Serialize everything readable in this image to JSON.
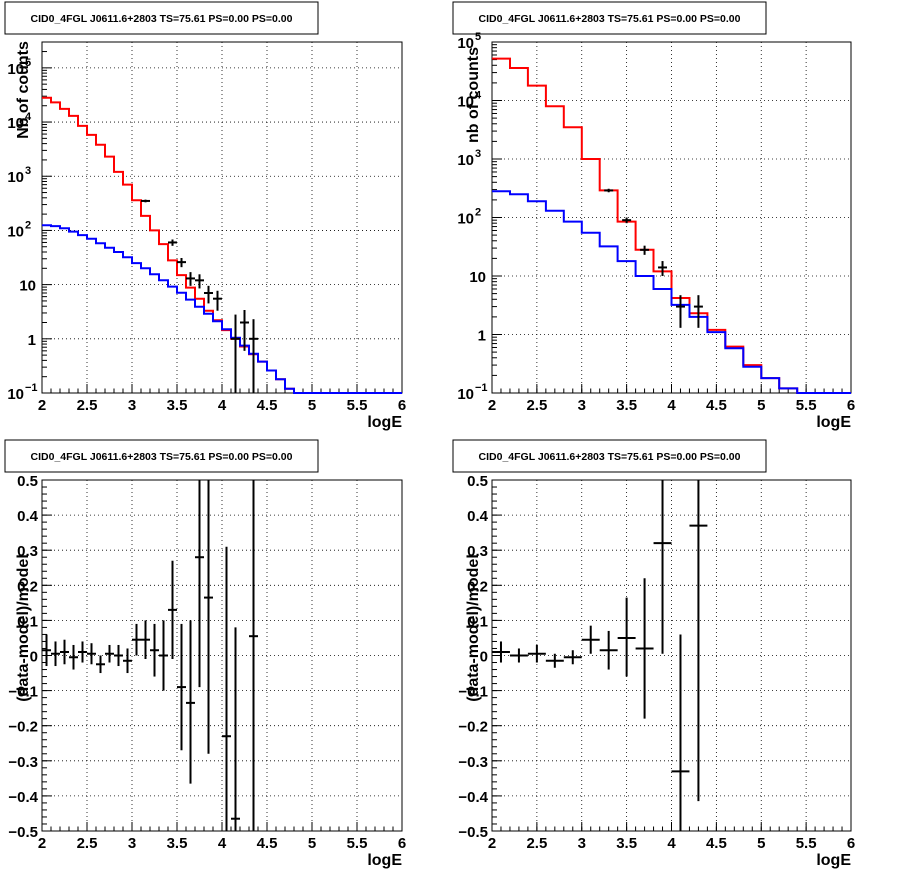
{
  "chart_data": [
    {
      "panel": "top-left",
      "type": "step-histogram",
      "title": "CID0_4FGL J0611.6+2803 TS=75.61 PS=0.00 PS=0.00",
      "xlabel": "logE",
      "ylabel": "Nb of counts",
      "xlim": [
        2,
        6
      ],
      "ylim": [
        0.1,
        300000
      ],
      "yscale": "log",
      "grid": true,
      "xticks": [
        "2",
        "2.5",
        "3",
        "3.5",
        "4",
        "4.5",
        "5",
        "5.5",
        "6"
      ],
      "yticks": [
        {
          "value": 0.1,
          "base": "10",
          "exp": "−1"
        },
        {
          "value": 1,
          "base": "1",
          "exp": ""
        },
        {
          "value": 10,
          "base": "10",
          "exp": ""
        },
        {
          "value": 100,
          "base": "10",
          "exp": "2"
        },
        {
          "value": 1000,
          "base": "10",
          "exp": "3"
        },
        {
          "value": 10000,
          "base": "10",
          "exp": "4"
        },
        {
          "value": 100000,
          "base": "10",
          "exp": "5"
        }
      ],
      "bin_edges": [
        2.0,
        2.1,
        2.2,
        2.3,
        2.4,
        2.5,
        2.6,
        2.7,
        2.8,
        2.9,
        3.0,
        3.1,
        3.2,
        3.3,
        3.4,
        3.5,
        3.6,
        3.7,
        3.8,
        3.9,
        4.0,
        4.1,
        4.2,
        4.3,
        4.4,
        4.5,
        4.6,
        4.7,
        4.8,
        4.9,
        5.0,
        5.1,
        5.2,
        5.3,
        5.4,
        5.5,
        5.6,
        5.7,
        5.8,
        5.9,
        6.0
      ],
      "series": [
        {
          "color": "#ff0000",
          "values": [
            28000,
            23000,
            17500,
            13000,
            8500,
            5800,
            3800,
            2300,
            1200,
            700,
            360,
            185,
            100,
            56,
            28,
            15,
            8.8,
            5.5,
            3.3,
            2.2,
            1.45,
            1.0,
            0.72,
            0.52,
            0.38,
            0.26,
            0.18,
            0.12,
            0.1,
            0.1,
            0.1,
            0.1,
            0.1,
            0.1,
            0.1,
            0.1,
            0.1,
            0.1,
            0.1,
            0.1
          ]
        },
        {
          "color": "#0000ff",
          "values": [
            125,
            120,
            110,
            95,
            82,
            70,
            58,
            48,
            40,
            32,
            25,
            20,
            15.5,
            12,
            9.2,
            7.1,
            5.3,
            3.9,
            2.9,
            2.1,
            1.5,
            1.05,
            0.75,
            0.53,
            0.38,
            0.26,
            0.18,
            0.12,
            0.1,
            0.1,
            0.1,
            0.1,
            0.1,
            0.1,
            0.1,
            0.1,
            0.1,
            0.1,
            0.1,
            0.1
          ]
        }
      ],
      "data_points": [
        {
          "x": 3.15,
          "y": 350,
          "ylo": 330,
          "yhi": 370
        },
        {
          "x": 3.45,
          "y": 60,
          "ylo": 52,
          "yhi": 68
        },
        {
          "x": 3.55,
          "y": 26,
          "ylo": 21,
          "yhi": 31
        },
        {
          "x": 3.65,
          "y": 13,
          "ylo": 9.5,
          "yhi": 17
        },
        {
          "x": 3.75,
          "y": 12,
          "ylo": 8.5,
          "yhi": 15.5
        },
        {
          "x": 3.85,
          "y": 7,
          "ylo": 4.5,
          "yhi": 9.5
        },
        {
          "x": 3.95,
          "y": 5.5,
          "ylo": 3.3,
          "yhi": 7.7
        },
        {
          "x": 4.15,
          "y": 1,
          "ylo": 0.1,
          "yhi": 2.8
        },
        {
          "x": 4.25,
          "y": 2,
          "ylo": 0.6,
          "yhi": 3.4
        },
        {
          "x": 4.35,
          "y": 1,
          "ylo": 0.1,
          "yhi": 2.3
        }
      ]
    },
    {
      "panel": "top-right",
      "type": "step-histogram",
      "title": "CID0_4FGL J0611.6+2803 TS=75.61 PS=0.00 PS=0.00",
      "xlabel": "logE",
      "ylabel": "nb of counts",
      "xlim": [
        2,
        6
      ],
      "ylim": [
        0.1,
        100000
      ],
      "yscale": "log",
      "grid": true,
      "xticks": [
        "2",
        "2.5",
        "3",
        "3.5",
        "4",
        "4.5",
        "5",
        "5.5",
        "6"
      ],
      "yticks": [
        {
          "value": 0.1,
          "base": "10",
          "exp": "−1"
        },
        {
          "value": 1,
          "base": "1",
          "exp": ""
        },
        {
          "value": 10,
          "base": "10",
          "exp": ""
        },
        {
          "value": 100,
          "base": "10",
          "exp": "2"
        },
        {
          "value": 1000,
          "base": "10",
          "exp": "3"
        },
        {
          "value": 10000,
          "base": "10",
          "exp": "4"
        },
        {
          "value": 100000,
          "base": "10",
          "exp": "5"
        }
      ],
      "bin_edges": [
        2.0,
        2.2,
        2.4,
        2.6,
        2.8,
        3.0,
        3.2,
        3.4,
        3.6,
        3.8,
        4.0,
        4.2,
        4.4,
        4.6,
        4.8,
        5.0,
        5.2,
        5.4,
        5.6,
        5.8,
        6.0
      ],
      "series": [
        {
          "color": "#ff0000",
          "values": [
            52000,
            36000,
            18000,
            8000,
            3500,
            1000,
            290,
            85,
            28,
            12,
            4.2,
            2.3,
            1.2,
            0.62,
            0.3,
            0.18,
            0.12,
            0.1,
            0.1,
            0.1
          ]
        },
        {
          "color": "#0000ff",
          "values": [
            280,
            250,
            190,
            130,
            85,
            55,
            32,
            18,
            10,
            6,
            3.2,
            2,
            1.1,
            0.58,
            0.28,
            0.18,
            0.12,
            0.1,
            0.1,
            0.1
          ]
        }
      ],
      "data_points": [
        {
          "x": 3.3,
          "y": 290,
          "ylo": 270,
          "yhi": 310
        },
        {
          "x": 3.5,
          "y": 90,
          "ylo": 80,
          "yhi": 100
        },
        {
          "x": 3.7,
          "y": 28,
          "ylo": 23,
          "yhi": 33
        },
        {
          "x": 3.9,
          "y": 14,
          "ylo": 10,
          "yhi": 18
        },
        {
          "x": 4.1,
          "y": 3,
          "ylo": 1.3,
          "yhi": 4.7
        },
        {
          "x": 4.3,
          "y": 3,
          "ylo": 1.3,
          "yhi": 4.7
        }
      ]
    },
    {
      "panel": "bottom-left",
      "type": "scatter-errorbars",
      "title": "CID0_4FGL J0611.6+2803 TS=75.61 PS=0.00 PS=0.00",
      "xlabel": "logE",
      "ylabel": "(data-model)/model",
      "xlim": [
        2,
        6
      ],
      "ylim": [
        -0.5,
        0.5
      ],
      "yscale": "linear",
      "grid": true,
      "xticks": [
        "2",
        "2.5",
        "3",
        "3.5",
        "4",
        "4.5",
        "5",
        "5.5",
        "6"
      ],
      "yticks": [
        "−0.5",
        "−0.4",
        "−0.3",
        "−0.2",
        "−0.1",
        "0",
        "0.1",
        "0.2",
        "0.3",
        "0.4",
        "0.5"
      ],
      "xerr": 0.05,
      "data_points": [
        {
          "x": 2.05,
          "y": 0.015,
          "ylo": -0.03,
          "yhi": 0.06
        },
        {
          "x": 2.15,
          "y": 0.005,
          "ylo": -0.03,
          "yhi": 0.04
        },
        {
          "x": 2.25,
          "y": 0.01,
          "ylo": -0.025,
          "yhi": 0.045
        },
        {
          "x": 2.35,
          "y": -0.005,
          "ylo": -0.04,
          "yhi": 0.03
        },
        {
          "x": 2.45,
          "y": 0.01,
          "ylo": -0.02,
          "yhi": 0.04
        },
        {
          "x": 2.55,
          "y": 0.005,
          "ylo": -0.025,
          "yhi": 0.035
        },
        {
          "x": 2.65,
          "y": -0.025,
          "ylo": -0.05,
          "yhi": 0.0
        },
        {
          "x": 2.75,
          "y": 0.005,
          "ylo": -0.02,
          "yhi": 0.03
        },
        {
          "x": 2.85,
          "y": 0.0,
          "ylo": -0.03,
          "yhi": 0.03
        },
        {
          "x": 2.95,
          "y": -0.015,
          "ylo": -0.05,
          "yhi": 0.02
        },
        {
          "x": 3.05,
          "y": 0.045,
          "ylo": 0.0,
          "yhi": 0.09
        },
        {
          "x": 3.15,
          "y": 0.045,
          "ylo": -0.01,
          "yhi": 0.1
        },
        {
          "x": 3.25,
          "y": 0.015,
          "ylo": -0.06,
          "yhi": 0.09
        },
        {
          "x": 3.35,
          "y": 0.0,
          "ylo": -0.1,
          "yhi": 0.1
        },
        {
          "x": 3.45,
          "y": 0.13,
          "ylo": -0.01,
          "yhi": 0.27
        },
        {
          "x": 3.55,
          "y": -0.09,
          "ylo": -0.27,
          "yhi": 0.09
        },
        {
          "x": 3.65,
          "y": -0.135,
          "ylo": -0.365,
          "yhi": 0.1
        },
        {
          "x": 3.75,
          "y": 0.28,
          "ylo": -0.09,
          "yhi": 0.5
        },
        {
          "x": 3.85,
          "y": 0.165,
          "ylo": -0.28,
          "yhi": 0.5
        },
        {
          "x": 4.05,
          "y": -0.23,
          "ylo": -0.5,
          "yhi": 0.31
        },
        {
          "x": 4.15,
          "y": -0.465,
          "ylo": -0.5,
          "yhi": 0.08
        },
        {
          "x": 4.35,
          "y": 0.055,
          "ylo": -0.5,
          "yhi": 0.5
        }
      ]
    },
    {
      "panel": "bottom-right",
      "type": "scatter-errorbars",
      "title": "CID0_4FGL J0611.6+2803 TS=75.61 PS=0.00 PS=0.00",
      "xlabel": "logE",
      "ylabel": "(data-model)/model",
      "xlim": [
        2,
        6
      ],
      "ylim": [
        -0.5,
        0.5
      ],
      "yscale": "linear",
      "grid": true,
      "xticks": [
        "2",
        "2.5",
        "3",
        "3.5",
        "4",
        "4.5",
        "5",
        "5.5",
        "6"
      ],
      "yticks": [
        "−0.5",
        "−0.4",
        "−0.3",
        "−0.2",
        "−0.1",
        "0",
        "0.1",
        "0.2",
        "0.3",
        "0.4",
        "0.5"
      ],
      "xerr": 0.1,
      "data_points": [
        {
          "x": 2.1,
          "y": 0.01,
          "ylo": -0.02,
          "yhi": 0.04
        },
        {
          "x": 2.3,
          "y": 0.0,
          "ylo": -0.02,
          "yhi": 0.02
        },
        {
          "x": 2.5,
          "y": 0.005,
          "ylo": -0.02,
          "yhi": 0.03
        },
        {
          "x": 2.7,
          "y": -0.015,
          "ylo": -0.035,
          "yhi": 0.005
        },
        {
          "x": 2.9,
          "y": -0.005,
          "ylo": -0.025,
          "yhi": 0.015
        },
        {
          "x": 3.1,
          "y": 0.045,
          "ylo": 0.005,
          "yhi": 0.085
        },
        {
          "x": 3.3,
          "y": 0.015,
          "ylo": -0.04,
          "yhi": 0.07
        },
        {
          "x": 3.5,
          "y": 0.05,
          "ylo": -0.06,
          "yhi": 0.165
        },
        {
          "x": 3.7,
          "y": 0.02,
          "ylo": -0.18,
          "yhi": 0.22
        },
        {
          "x": 3.9,
          "y": 0.32,
          "ylo": 0.005,
          "yhi": 0.5
        },
        {
          "x": 4.1,
          "y": -0.33,
          "ylo": -0.5,
          "yhi": 0.06
        },
        {
          "x": 4.3,
          "y": 0.37,
          "ylo": -0.415,
          "yhi": 0.5
        }
      ]
    }
  ]
}
